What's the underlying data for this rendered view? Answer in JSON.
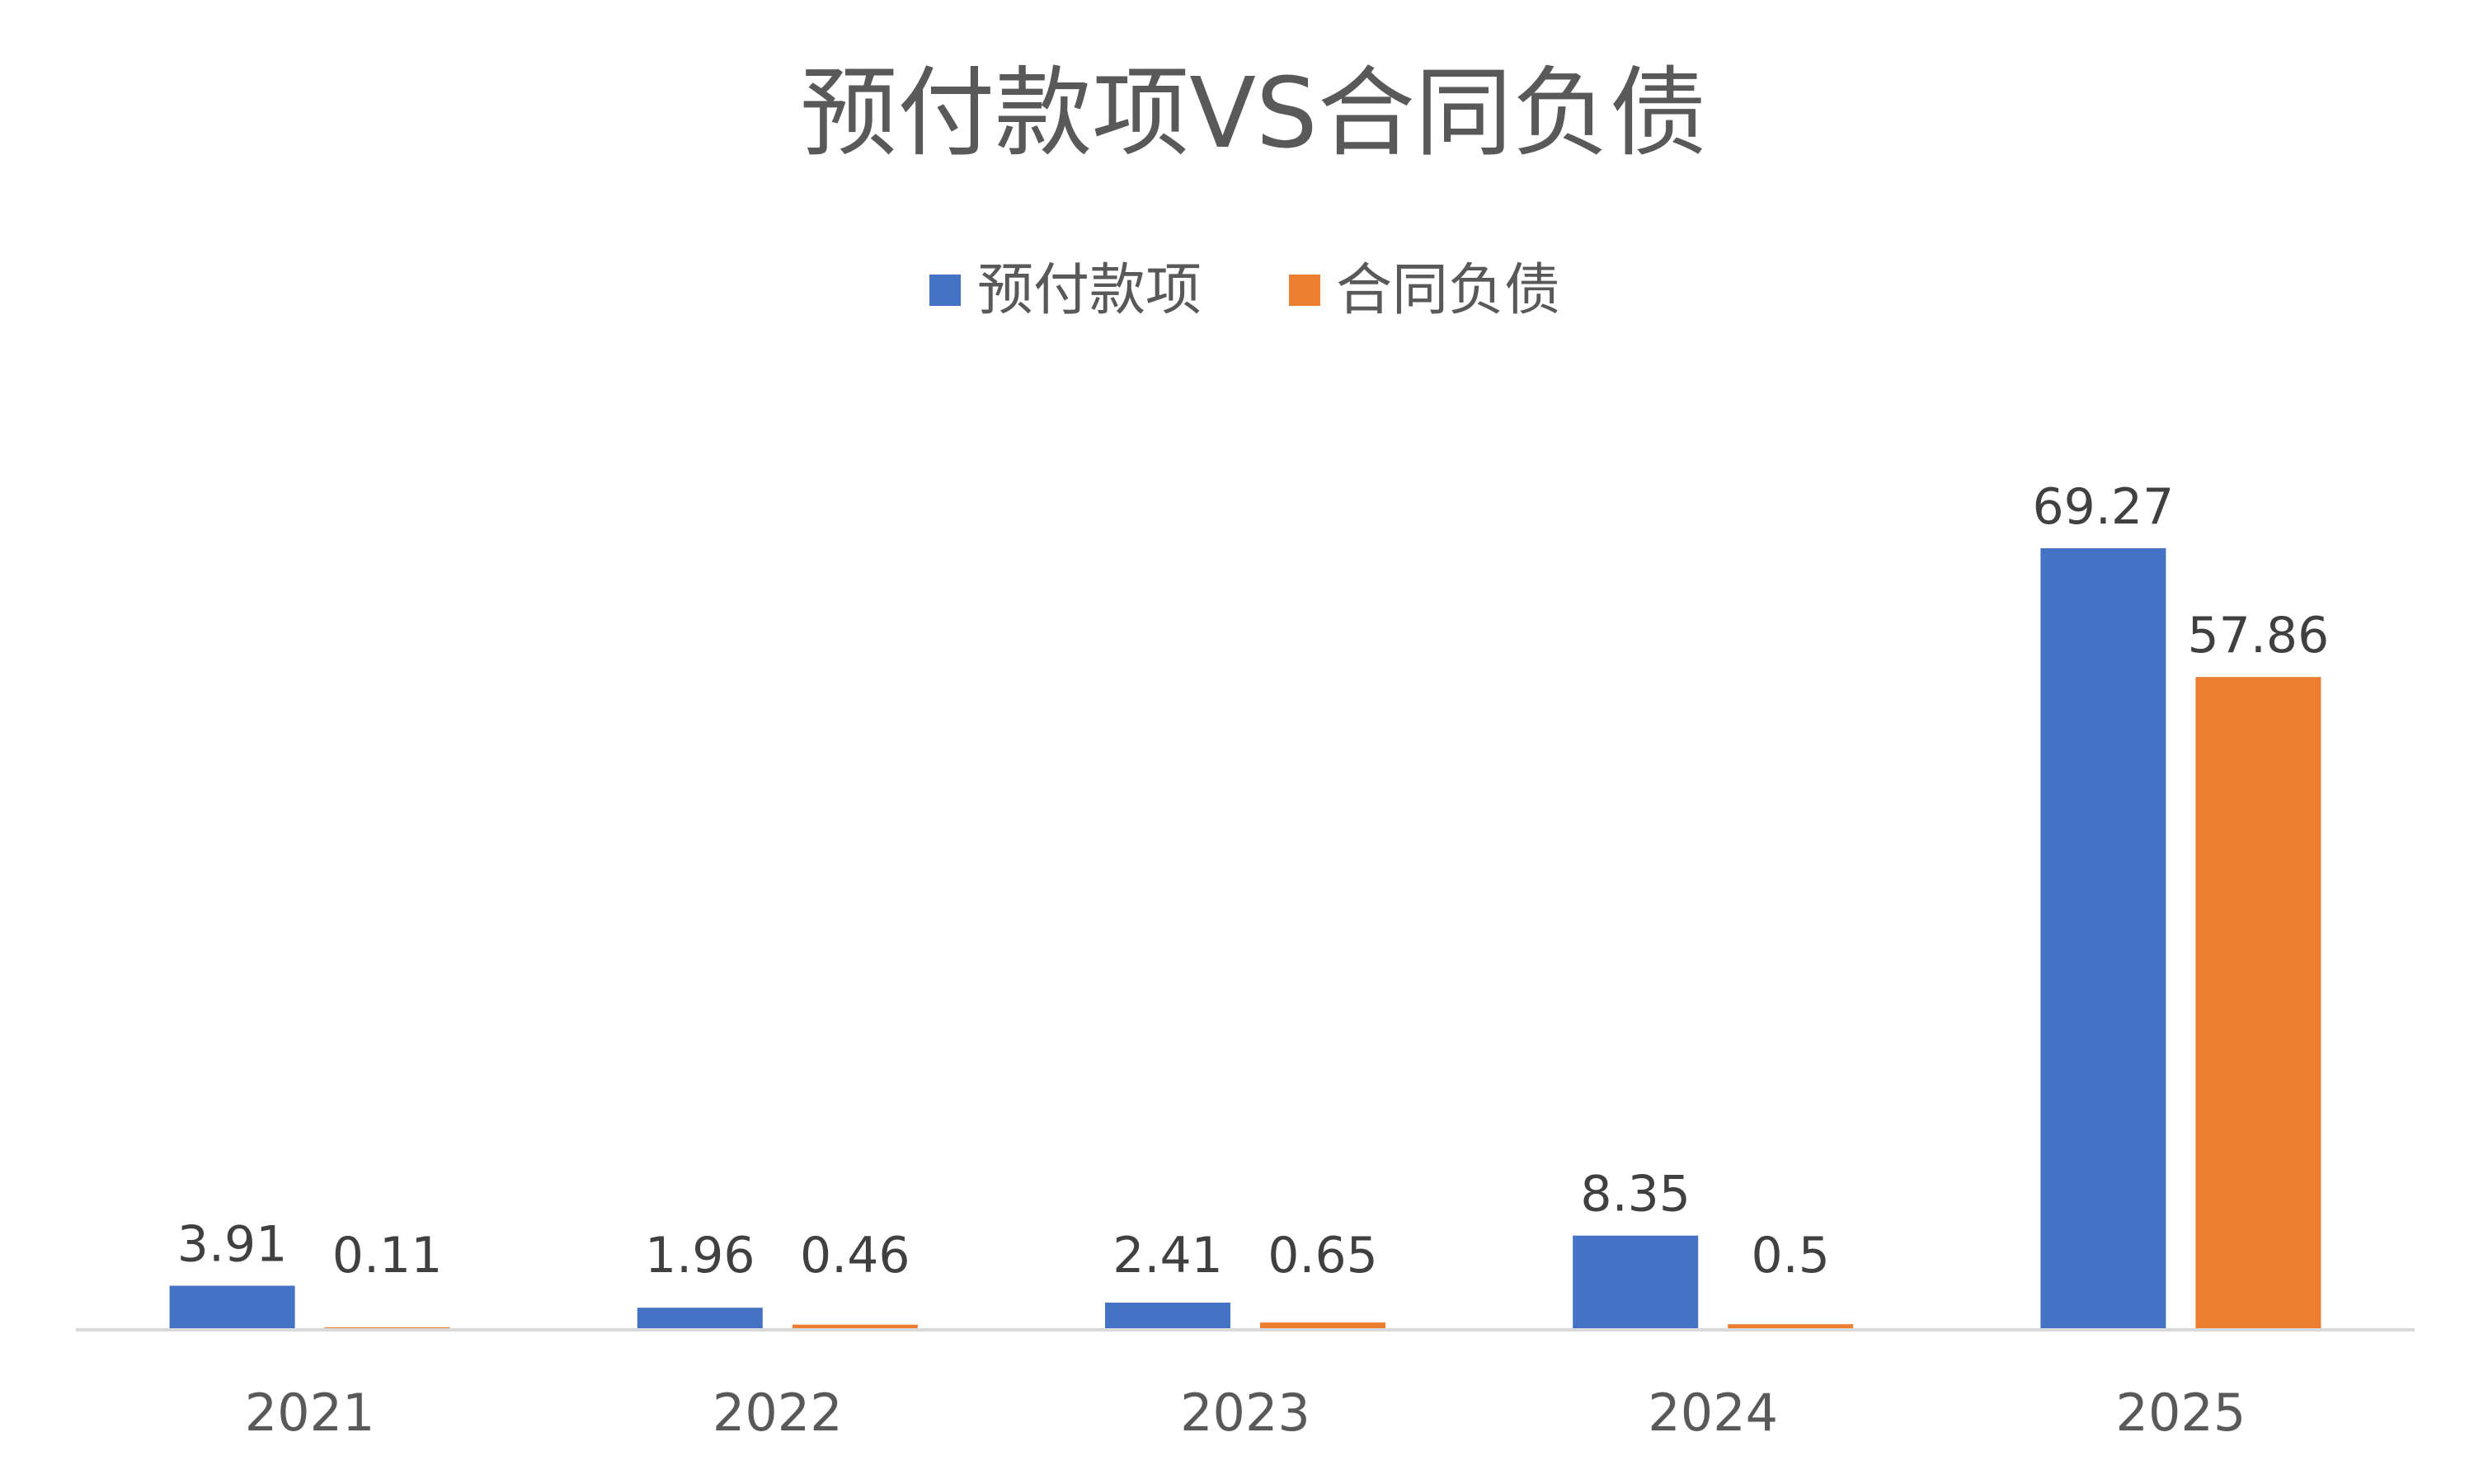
{
  "chart_data": {
    "type": "bar",
    "title": "预付款项VS合同负债",
    "xlabel": "",
    "ylabel": "",
    "categories": [
      "2021",
      "2022",
      "2023",
      "2024",
      "2025"
    ],
    "series": [
      {
        "name": "预付款项",
        "color": "#4472C4",
        "values": [
          3.91,
          1.96,
          2.41,
          8.35,
          69.27
        ],
        "labels": [
          "3.91",
          "1.96",
          "2.41",
          "8.35",
          "69.27"
        ]
      },
      {
        "name": "合同负债",
        "color": "#ED7D31",
        "values": [
          0.11,
          0.46,
          0.65,
          0.5,
          57.86
        ],
        "labels": [
          "0.11",
          "0.46",
          "0.65",
          "0.5",
          "57.86"
        ]
      }
    ],
    "ylim": [
      0,
      69.27
    ],
    "legend_position": "top",
    "grid": false,
    "axis_color": "#D9D9D9"
  }
}
